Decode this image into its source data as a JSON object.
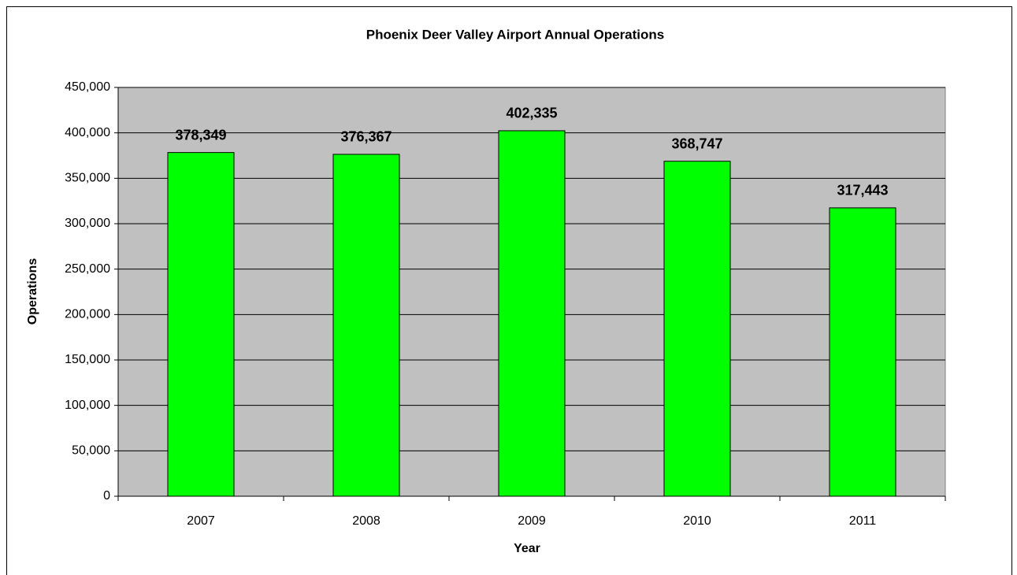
{
  "chart_data": {
    "type": "bar",
    "title": "Phoenix Deer Valley Airport Annual Operations",
    "x_label": "Year",
    "y_label": "Operations",
    "categories": [
      "2007",
      "2008",
      "2009",
      "2010",
      "2011"
    ],
    "values": [
      378349,
      376367,
      402335,
      368747,
      317443
    ],
    "value_labels": [
      "378,349",
      "376,367",
      "402,335",
      "368,747",
      "317,443"
    ],
    "color": "#00ff00",
    "ylim": [
      0,
      450000
    ],
    "yticks": [
      0,
      {
        "value": 50000,
        "label": "50,000"
      },
      {
        "value": 100000,
        "label": "100,000"
      },
      {
        "value": 150000,
        "label": "150,000"
      },
      {
        "value": 200000,
        "label": "200,000"
      },
      {
        "value": 250000,
        "label": "250,000"
      },
      {
        "value": 300000,
        "label": "300,000"
      },
      {
        "value": 350000,
        "label": "350,000"
      },
      {
        "value": 400000,
        "label": "400,000"
      },
      {
        "value": 450000,
        "label": "450,000"
      }
    ],
    "grid": true
  }
}
